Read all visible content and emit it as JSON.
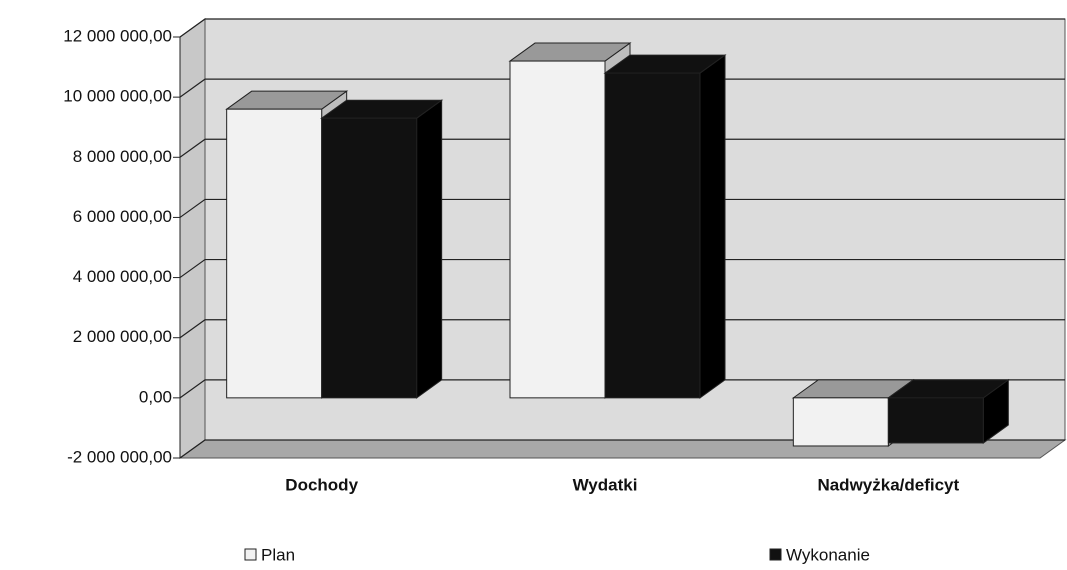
{
  "chart_data": {
    "type": "bar3d",
    "categories": [
      "Dochody",
      "Wydatki",
      "Nadwyżka/deficyt"
    ],
    "series": [
      {
        "name": "Plan",
        "color": "#f2f2f2",
        "values": [
          9600000,
          11200000,
          -1600000
        ]
      },
      {
        "name": "Wykonanie",
        "color": "#111111",
        "values": [
          9300000,
          10800000,
          -1500000
        ]
      }
    ],
    "ylim": [
      -2000000,
      12000000
    ],
    "yticks": [
      {
        "value": -2000000,
        "label": "-2 000 000,00"
      },
      {
        "value": 0,
        "label": "0,00"
      },
      {
        "value": 2000000,
        "label": "2 000 000,00"
      },
      {
        "value": 4000000,
        "label": "4 000 000,00"
      },
      {
        "value": 6000000,
        "label": "6 000 000,00"
      },
      {
        "value": 8000000,
        "label": "8 000 000,00"
      },
      {
        "value": 10000000,
        "label": "10 000 000,00"
      },
      {
        "value": 12000000,
        "label": "12 000 000,00"
      }
    ],
    "grid": true
  }
}
